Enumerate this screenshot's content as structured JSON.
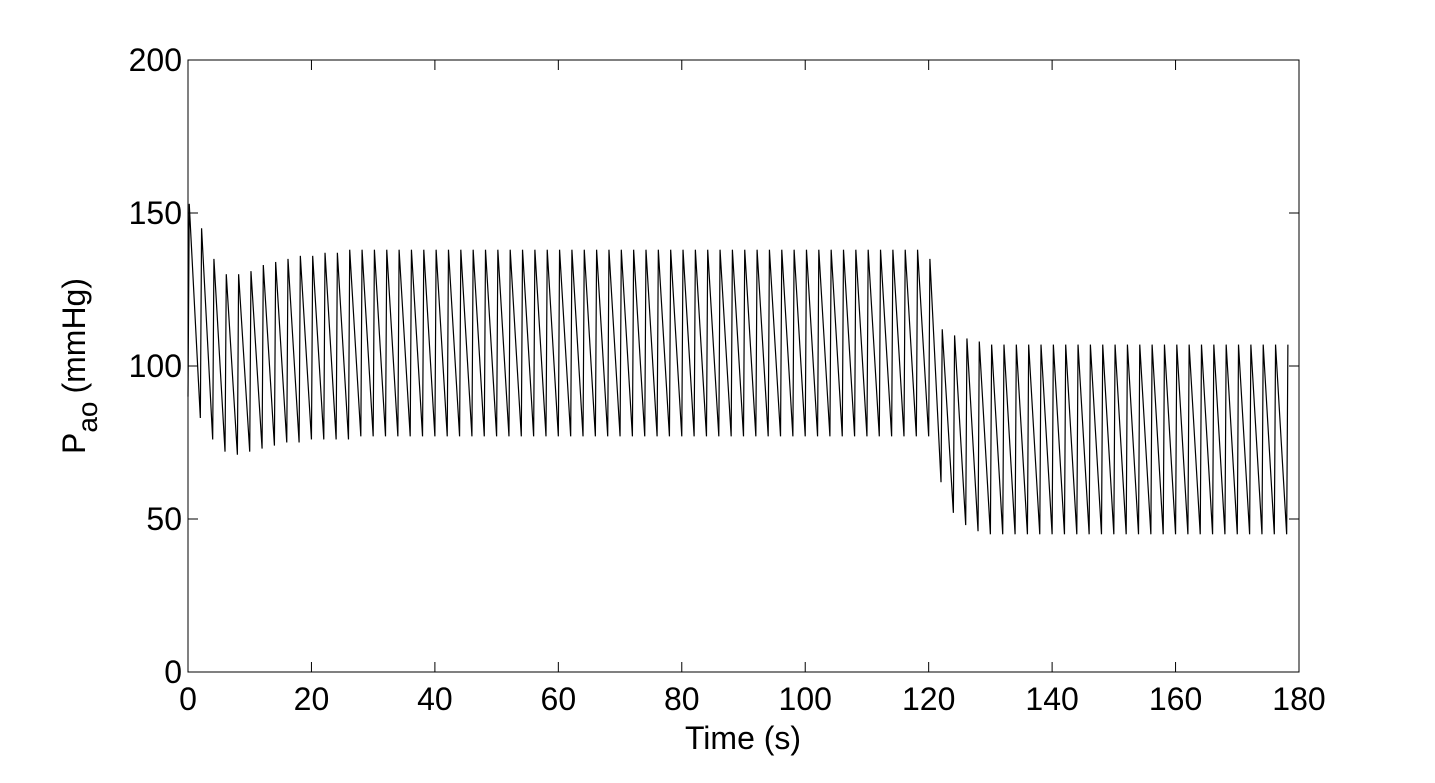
{
  "chart_data": {
    "type": "line",
    "xlabel": "Time (s)",
    "ylabel": {
      "symbol": "P",
      "subscript": "ao",
      "unit": "(mmHg)"
    },
    "color": "#000000",
    "xlim": [
      0,
      180
    ],
    "xticks": [
      0,
      20,
      40,
      60,
      80,
      100,
      120,
      140,
      160,
      180
    ],
    "ylim": [
      0,
      200
    ],
    "yticks": [
      0,
      50,
      100,
      150,
      200
    ],
    "x": [
      0,
      0.2,
      2,
      2.2,
      4,
      4.2,
      6,
      6.2,
      8,
      8.2,
      10,
      10.2,
      12,
      12.2,
      14,
      14.2,
      16,
      16.2,
      18,
      18.2,
      20,
      20.2,
      22,
      22.2,
      24,
      24.2,
      26,
      26.2,
      28,
      28.2,
      30,
      30.2,
      32,
      32.2,
      34,
      34.2,
      36,
      36.2,
      38,
      38.2,
      40,
      40.2,
      42,
      42.2,
      44,
      44.2,
      46,
      46.2,
      48,
      48.2,
      50,
      50.2,
      52,
      52.2,
      54,
      54.2,
      56,
      56.2,
      58,
      58.2,
      60,
      60.2,
      62,
      62.2,
      64,
      64.2,
      66,
      66.2,
      68,
      68.2,
      70,
      70.2,
      72,
      72.2,
      74,
      74.2,
      76,
      76.2,
      78,
      78.2,
      80,
      80.2,
      82,
      82.2,
      84,
      84.2,
      86,
      86.2,
      88,
      88.2,
      90,
      90.2,
      92,
      92.2,
      94,
      94.2,
      96,
      96.2,
      98,
      98.2,
      100,
      100.2,
      102,
      102.2,
      104,
      104.2,
      106,
      106.2,
      108,
      108.2,
      110,
      110.2,
      112,
      112.2,
      114,
      114.2,
      116,
      116.2,
      118,
      118.2,
      120,
      120.2,
      122,
      122.2,
      124,
      124.2,
      126,
      126.2,
      128,
      128.2,
      130,
      130.2,
      132,
      132.2,
      134,
      134.2,
      136,
      136.2,
      138,
      138.2,
      140,
      140.2,
      142,
      142.2,
      144,
      144.2,
      146,
      146.2,
      148,
      148.2,
      150,
      150.2,
      152,
      152.2,
      154,
      154.2,
      156,
      156.2,
      158,
      158.2,
      160,
      160.2,
      162,
      162.2,
      164,
      164.2,
      166,
      166.2,
      168,
      168.2,
      170,
      170.2,
      172,
      172.2,
      174,
      174.2,
      176,
      176.2,
      178,
      178.2
    ],
    "values": [
      90,
      153,
      83,
      145,
      76,
      135,
      72,
      130,
      71,
      130,
      72,
      131,
      73,
      133,
      74,
      134,
      75,
      135,
      75,
      136,
      76,
      136,
      76,
      137,
      76,
      137,
      76,
      138,
      77,
      138,
      77,
      138,
      77,
      138,
      77,
      138,
      77,
      138,
      77,
      138,
      77,
      138,
      77,
      138,
      77,
      138,
      77,
      138,
      77,
      138,
      77,
      138,
      77,
      138,
      77,
      138,
      77,
      138,
      77,
      138,
      77,
      138,
      77,
      138,
      77,
      138,
      77,
      138,
      77,
      138,
      77,
      138,
      77,
      138,
      77,
      138,
      77,
      138,
      77,
      138,
      77,
      138,
      77,
      138,
      77,
      138,
      77,
      138,
      77,
      138,
      77,
      138,
      77,
      138,
      77,
      138,
      77,
      138,
      77,
      138,
      77,
      138,
      77,
      138,
      77,
      138,
      77,
      138,
      77,
      138,
      77,
      138,
      77,
      138,
      77,
      138,
      77,
      138,
      77,
      138,
      77,
      135,
      62,
      112,
      52,
      110,
      48,
      109,
      46,
      108,
      45,
      107,
      45,
      107,
      45,
      107,
      45,
      107,
      45,
      107,
      45,
      107,
      45,
      107,
      45,
      107,
      45,
      107,
      45,
      107,
      45,
      107,
      45,
      107,
      45,
      107,
      45,
      107,
      45,
      107,
      45,
      107,
      45,
      107,
      45,
      107,
      45,
      107,
      45,
      107,
      45,
      107,
      45,
      107,
      45,
      107,
      45,
      107,
      45,
      107
    ]
  }
}
